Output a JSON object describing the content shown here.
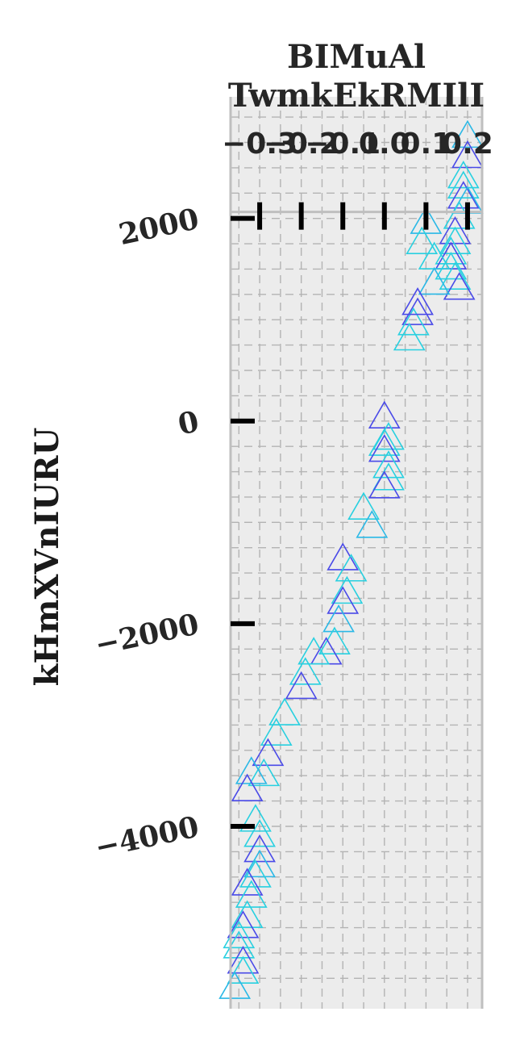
{
  "chart_data": {
    "type": "scatter",
    "title": "BIMuAl\nTwmkEkRMIlI",
    "xlabel": "",
    "ylabel": "kHmXVnIURU",
    "xlim": [
      -0.37,
      0.235
    ],
    "ylim": [
      -5800,
      3200
    ],
    "x_ticks": [
      -0.3,
      -0.2,
      -0.1,
      0.0,
      0.1,
      0.2
    ],
    "x_tick_labels": [
      "−0.3",
      "−0.2",
      "−0.1",
      "0.0",
      "0.1",
      "0.2"
    ],
    "x_axis_position": "top",
    "y_ticks": [
      -4000,
      -2000,
      0,
      2000
    ],
    "y_tick_labels": [
      "−4000",
      "−2000",
      "0",
      "2000"
    ],
    "grid": true,
    "marker": "triangle-open",
    "colors": [
      "#28d0e0",
      "#4a4ae8",
      "#2ab8e6"
    ],
    "series": [
      {
        "x": [
          0.2,
          0.2,
          0.19,
          0.19,
          0.19,
          0.2,
          0.18,
          0.17,
          0.17,
          0.16,
          0.16,
          0.16,
          0.17,
          0.18,
          0.12,
          0.12,
          0.08,
          0.07,
          0.06,
          0.08,
          0.1,
          0.09,
          0.0,
          0.01,
          0.0,
          0.0,
          0.01,
          0.01,
          0.0,
          -0.05,
          -0.03,
          -0.1,
          -0.08,
          -0.09,
          -0.1,
          -0.11,
          -0.12,
          -0.14,
          -0.17,
          -0.19,
          -0.2,
          -0.24,
          -0.26,
          -0.28,
          -0.29,
          -0.32,
          -0.33,
          -0.31,
          -0.3,
          -0.3,
          -0.3,
          -0.31,
          -0.33,
          -0.32,
          -0.33,
          -0.34,
          -0.35,
          -0.35,
          -0.34,
          -0.34,
          -0.36
        ],
        "y": [
          2800,
          2600,
          2400,
          2300,
          2200,
          2150,
          2000,
          1850,
          1750,
          1650,
          1600,
          1500,
          1400,
          1300,
          1600,
          1350,
          1050,
          950,
          800,
          1150,
          1950,
          1750,
          30,
          -180,
          -240,
          -300,
          -460,
          -580,
          -660,
          -870,
          -1050,
          -1370,
          -1480,
          -1700,
          -1800,
          -1980,
          -2200,
          -2300,
          -2300,
          -2500,
          -2640,
          -2900,
          -3100,
          -3300,
          -3500,
          -3480,
          -3650,
          -3950,
          -4100,
          -4250,
          -4400,
          -4500,
          -4580,
          -4700,
          -4900,
          -5000,
          -5100,
          -5200,
          -5350,
          -5450,
          -5600
        ]
      }
    ]
  }
}
